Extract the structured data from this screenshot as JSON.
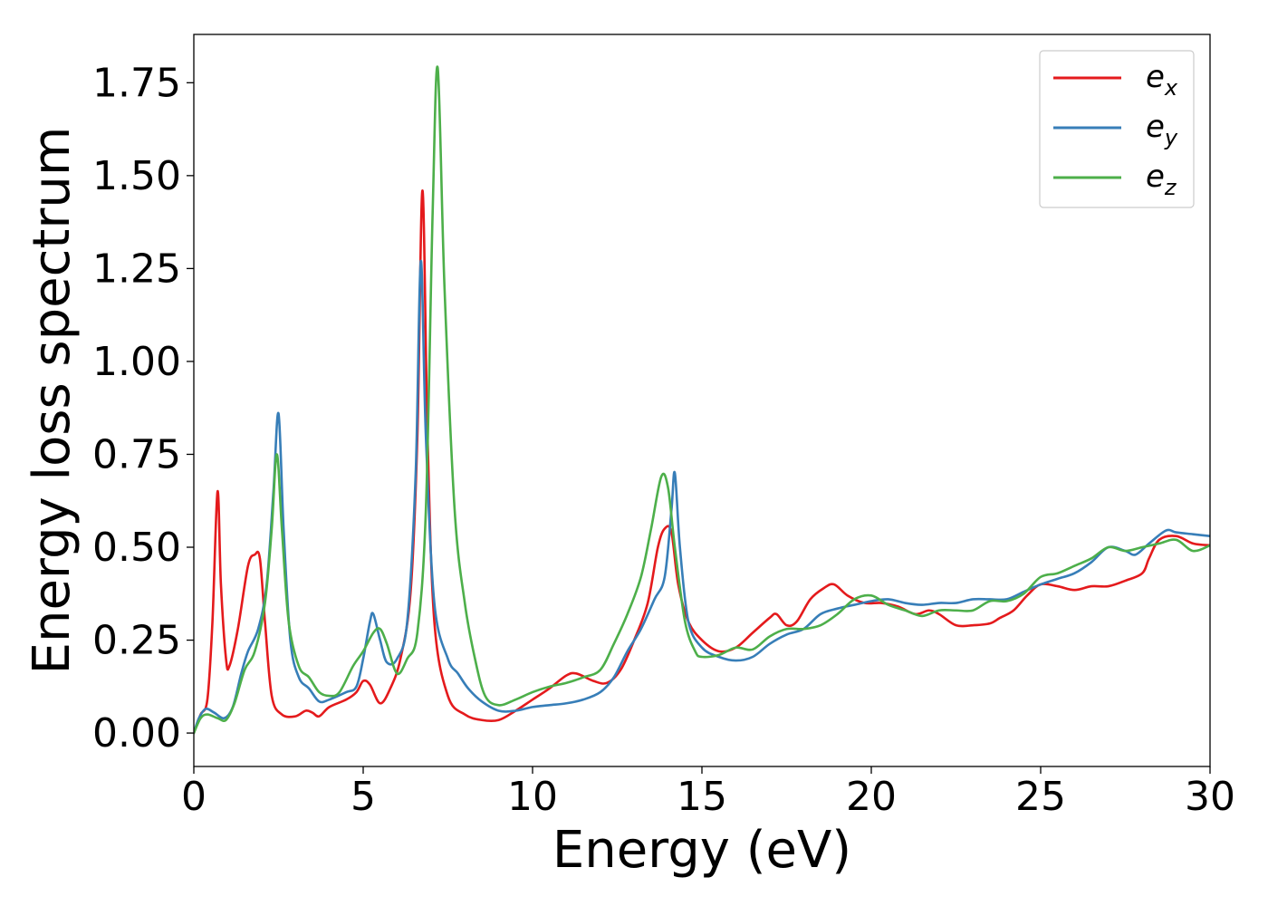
{
  "chart_data": {
    "type": "line",
    "title": "",
    "xlabel": "Energy (eV)",
    "ylabel": "Energy loss spectrum",
    "xlim": [
      0,
      30
    ],
    "ylim": [
      -0.09,
      1.88
    ],
    "x_ticks": [
      0,
      5,
      10,
      15,
      20,
      25,
      30
    ],
    "x_tick_labels": [
      "0",
      "5",
      "10",
      "15",
      "20",
      "25",
      "30"
    ],
    "y_ticks": [
      0.0,
      0.25,
      0.5,
      0.75,
      1.0,
      1.25,
      1.5,
      1.75
    ],
    "y_tick_labels": [
      "0.00",
      "0.25",
      "0.50",
      "0.75",
      "1.00",
      "1.25",
      "1.50",
      "1.75"
    ],
    "grid": false,
    "legend": "top-right",
    "series": [
      {
        "name": "e_x",
        "legend_base": "e",
        "legend_sub": "x",
        "color": "#e41a1c",
        "points": [
          [
            0,
            0
          ],
          [
            0.2,
            0.05
          ],
          [
            0.4,
            0.09
          ],
          [
            0.55,
            0.3
          ],
          [
            0.7,
            0.65
          ],
          [
            0.8,
            0.4
          ],
          [
            0.95,
            0.2
          ],
          [
            1.05,
            0.18
          ],
          [
            1.3,
            0.28
          ],
          [
            1.6,
            0.45
          ],
          [
            1.8,
            0.48
          ],
          [
            1.95,
            0.47
          ],
          [
            2.1,
            0.3
          ],
          [
            2.3,
            0.1
          ],
          [
            2.6,
            0.05
          ],
          [
            3.0,
            0.045
          ],
          [
            3.3,
            0.06
          ],
          [
            3.5,
            0.055
          ],
          [
            3.7,
            0.045
          ],
          [
            4.0,
            0.07
          ],
          [
            4.5,
            0.09
          ],
          [
            4.8,
            0.11
          ],
          [
            5.0,
            0.14
          ],
          [
            5.2,
            0.13
          ],
          [
            5.5,
            0.08
          ],
          [
            5.8,
            0.12
          ],
          [
            6.1,
            0.2
          ],
          [
            6.4,
            0.38
          ],
          [
            6.6,
            0.8
          ],
          [
            6.75,
            1.46
          ],
          [
            6.9,
            0.8
          ],
          [
            7.1,
            0.3
          ],
          [
            7.5,
            0.1
          ],
          [
            8.0,
            0.05
          ],
          [
            8.5,
            0.035
          ],
          [
            9.0,
            0.035
          ],
          [
            9.5,
            0.06
          ],
          [
            10.0,
            0.09
          ],
          [
            10.5,
            0.12
          ],
          [
            11.0,
            0.155
          ],
          [
            11.3,
            0.16
          ],
          [
            11.8,
            0.14
          ],
          [
            12.2,
            0.135
          ],
          [
            12.6,
            0.17
          ],
          [
            13.0,
            0.25
          ],
          [
            13.4,
            0.35
          ],
          [
            13.7,
            0.5
          ],
          [
            13.9,
            0.55
          ],
          [
            14.1,
            0.54
          ],
          [
            14.3,
            0.4
          ],
          [
            14.6,
            0.3
          ],
          [
            15.0,
            0.25
          ],
          [
            15.5,
            0.22
          ],
          [
            16.0,
            0.23
          ],
          [
            16.5,
            0.27
          ],
          [
            17.0,
            0.31
          ],
          [
            17.2,
            0.32
          ],
          [
            17.5,
            0.29
          ],
          [
            17.8,
            0.3
          ],
          [
            18.2,
            0.36
          ],
          [
            18.6,
            0.39
          ],
          [
            18.9,
            0.4
          ],
          [
            19.3,
            0.37
          ],
          [
            19.8,
            0.35
          ],
          [
            20.3,
            0.35
          ],
          [
            20.8,
            0.34
          ],
          [
            21.3,
            0.32
          ],
          [
            21.7,
            0.33
          ],
          [
            22.0,
            0.32
          ],
          [
            22.5,
            0.29
          ],
          [
            23.0,
            0.29
          ],
          [
            23.5,
            0.295
          ],
          [
            23.8,
            0.31
          ],
          [
            24.2,
            0.33
          ],
          [
            24.6,
            0.37
          ],
          [
            25.0,
            0.4
          ],
          [
            25.5,
            0.395
          ],
          [
            26.0,
            0.385
          ],
          [
            26.5,
            0.395
          ],
          [
            27.0,
            0.395
          ],
          [
            27.5,
            0.41
          ],
          [
            28.0,
            0.43
          ],
          [
            28.2,
            0.47
          ],
          [
            28.5,
            0.52
          ],
          [
            29.0,
            0.53
          ],
          [
            29.5,
            0.51
          ],
          [
            30.0,
            0.505
          ]
        ]
      },
      {
        "name": "e_y",
        "legend_base": "e",
        "legend_sub": "y",
        "color": "#377eb8",
        "points": [
          [
            0,
            0
          ],
          [
            0.15,
            0.04
          ],
          [
            0.35,
            0.065
          ],
          [
            0.6,
            0.055
          ],
          [
            0.9,
            0.04
          ],
          [
            1.15,
            0.07
          ],
          [
            1.4,
            0.16
          ],
          [
            1.6,
            0.22
          ],
          [
            1.9,
            0.28
          ],
          [
            2.15,
            0.4
          ],
          [
            2.35,
            0.65
          ],
          [
            2.5,
            0.86
          ],
          [
            2.65,
            0.55
          ],
          [
            2.85,
            0.25
          ],
          [
            3.1,
            0.15
          ],
          [
            3.4,
            0.12
          ],
          [
            3.7,
            0.085
          ],
          [
            4.0,
            0.09
          ],
          [
            4.5,
            0.11
          ],
          [
            4.8,
            0.125
          ],
          [
            5.0,
            0.2
          ],
          [
            5.2,
            0.3
          ],
          [
            5.3,
            0.32
          ],
          [
            5.5,
            0.25
          ],
          [
            5.7,
            0.19
          ],
          [
            6.0,
            0.2
          ],
          [
            6.3,
            0.3
          ],
          [
            6.55,
            0.7
          ],
          [
            6.7,
            1.27
          ],
          [
            6.85,
            0.8
          ],
          [
            7.1,
            0.35
          ],
          [
            7.5,
            0.2
          ],
          [
            7.8,
            0.16
          ],
          [
            8.1,
            0.12
          ],
          [
            8.5,
            0.085
          ],
          [
            9.0,
            0.06
          ],
          [
            9.5,
            0.06
          ],
          [
            10.0,
            0.07
          ],
          [
            10.5,
            0.075
          ],
          [
            11.0,
            0.08
          ],
          [
            11.5,
            0.09
          ],
          [
            12.0,
            0.11
          ],
          [
            12.4,
            0.15
          ],
          [
            12.8,
            0.22
          ],
          [
            13.2,
            0.28
          ],
          [
            13.6,
            0.36
          ],
          [
            13.9,
            0.42
          ],
          [
            14.1,
            0.6
          ],
          [
            14.2,
            0.7
          ],
          [
            14.35,
            0.5
          ],
          [
            14.6,
            0.3
          ],
          [
            15.0,
            0.23
          ],
          [
            15.5,
            0.205
          ],
          [
            16.0,
            0.195
          ],
          [
            16.5,
            0.205
          ],
          [
            17.0,
            0.24
          ],
          [
            17.5,
            0.265
          ],
          [
            18.0,
            0.28
          ],
          [
            18.5,
            0.32
          ],
          [
            19.0,
            0.335
          ],
          [
            19.5,
            0.345
          ],
          [
            20.0,
            0.355
          ],
          [
            20.5,
            0.36
          ],
          [
            21.0,
            0.35
          ],
          [
            21.5,
            0.345
          ],
          [
            22.0,
            0.35
          ],
          [
            22.5,
            0.35
          ],
          [
            23.0,
            0.36
          ],
          [
            23.5,
            0.36
          ],
          [
            24.0,
            0.36
          ],
          [
            24.5,
            0.38
          ],
          [
            25.0,
            0.4
          ],
          [
            25.5,
            0.415
          ],
          [
            26.0,
            0.43
          ],
          [
            26.5,
            0.46
          ],
          [
            27.0,
            0.5
          ],
          [
            27.5,
            0.49
          ],
          [
            27.8,
            0.48
          ],
          [
            28.2,
            0.51
          ],
          [
            28.7,
            0.545
          ],
          [
            29.0,
            0.54
          ],
          [
            29.5,
            0.535
          ],
          [
            30.0,
            0.53
          ]
        ]
      },
      {
        "name": "e_z",
        "legend_base": "e",
        "legend_sub": "z",
        "color": "#4daf4a",
        "points": [
          [
            0,
            0
          ],
          [
            0.2,
            0.04
          ],
          [
            0.4,
            0.05
          ],
          [
            0.7,
            0.04
          ],
          [
            0.95,
            0.035
          ],
          [
            1.2,
            0.08
          ],
          [
            1.5,
            0.17
          ],
          [
            1.8,
            0.22
          ],
          [
            2.1,
            0.35
          ],
          [
            2.3,
            0.55
          ],
          [
            2.45,
            0.75
          ],
          [
            2.6,
            0.55
          ],
          [
            2.8,
            0.3
          ],
          [
            3.1,
            0.18
          ],
          [
            3.4,
            0.15
          ],
          [
            3.7,
            0.11
          ],
          [
            4.0,
            0.1
          ],
          [
            4.3,
            0.11
          ],
          [
            4.7,
            0.18
          ],
          [
            5.0,
            0.22
          ],
          [
            5.3,
            0.27
          ],
          [
            5.5,
            0.28
          ],
          [
            5.7,
            0.24
          ],
          [
            6.0,
            0.16
          ],
          [
            6.3,
            0.2
          ],
          [
            6.6,
            0.27
          ],
          [
            6.85,
            0.6
          ],
          [
            7.05,
            1.4
          ],
          [
            7.2,
            1.79
          ],
          [
            7.4,
            1.2
          ],
          [
            7.7,
            0.6
          ],
          [
            8.0,
            0.35
          ],
          [
            8.3,
            0.2
          ],
          [
            8.6,
            0.1
          ],
          [
            9.0,
            0.075
          ],
          [
            9.5,
            0.09
          ],
          [
            10.0,
            0.11
          ],
          [
            10.5,
            0.125
          ],
          [
            11.0,
            0.135
          ],
          [
            11.5,
            0.15
          ],
          [
            12.0,
            0.17
          ],
          [
            12.4,
            0.24
          ],
          [
            12.8,
            0.32
          ],
          [
            13.2,
            0.42
          ],
          [
            13.5,
            0.55
          ],
          [
            13.8,
            0.69
          ],
          [
            14.0,
            0.66
          ],
          [
            14.2,
            0.5
          ],
          [
            14.5,
            0.3
          ],
          [
            14.8,
            0.22
          ],
          [
            15.0,
            0.205
          ],
          [
            15.5,
            0.21
          ],
          [
            16.0,
            0.23
          ],
          [
            16.5,
            0.225
          ],
          [
            17.0,
            0.26
          ],
          [
            17.5,
            0.28
          ],
          [
            18.0,
            0.28
          ],
          [
            18.5,
            0.29
          ],
          [
            19.0,
            0.32
          ],
          [
            19.5,
            0.36
          ],
          [
            20.0,
            0.37
          ],
          [
            20.5,
            0.345
          ],
          [
            21.0,
            0.33
          ],
          [
            21.5,
            0.315
          ],
          [
            22.0,
            0.33
          ],
          [
            22.5,
            0.33
          ],
          [
            23.0,
            0.33
          ],
          [
            23.5,
            0.355
          ],
          [
            24.0,
            0.355
          ],
          [
            24.5,
            0.375
          ],
          [
            25.0,
            0.42
          ],
          [
            25.5,
            0.43
          ],
          [
            26.0,
            0.45
          ],
          [
            26.5,
            0.47
          ],
          [
            27.0,
            0.5
          ],
          [
            27.5,
            0.49
          ],
          [
            28.0,
            0.5
          ],
          [
            28.5,
            0.51
          ],
          [
            29.0,
            0.52
          ],
          [
            29.5,
            0.49
          ],
          [
            30.0,
            0.505
          ]
        ]
      }
    ]
  }
}
